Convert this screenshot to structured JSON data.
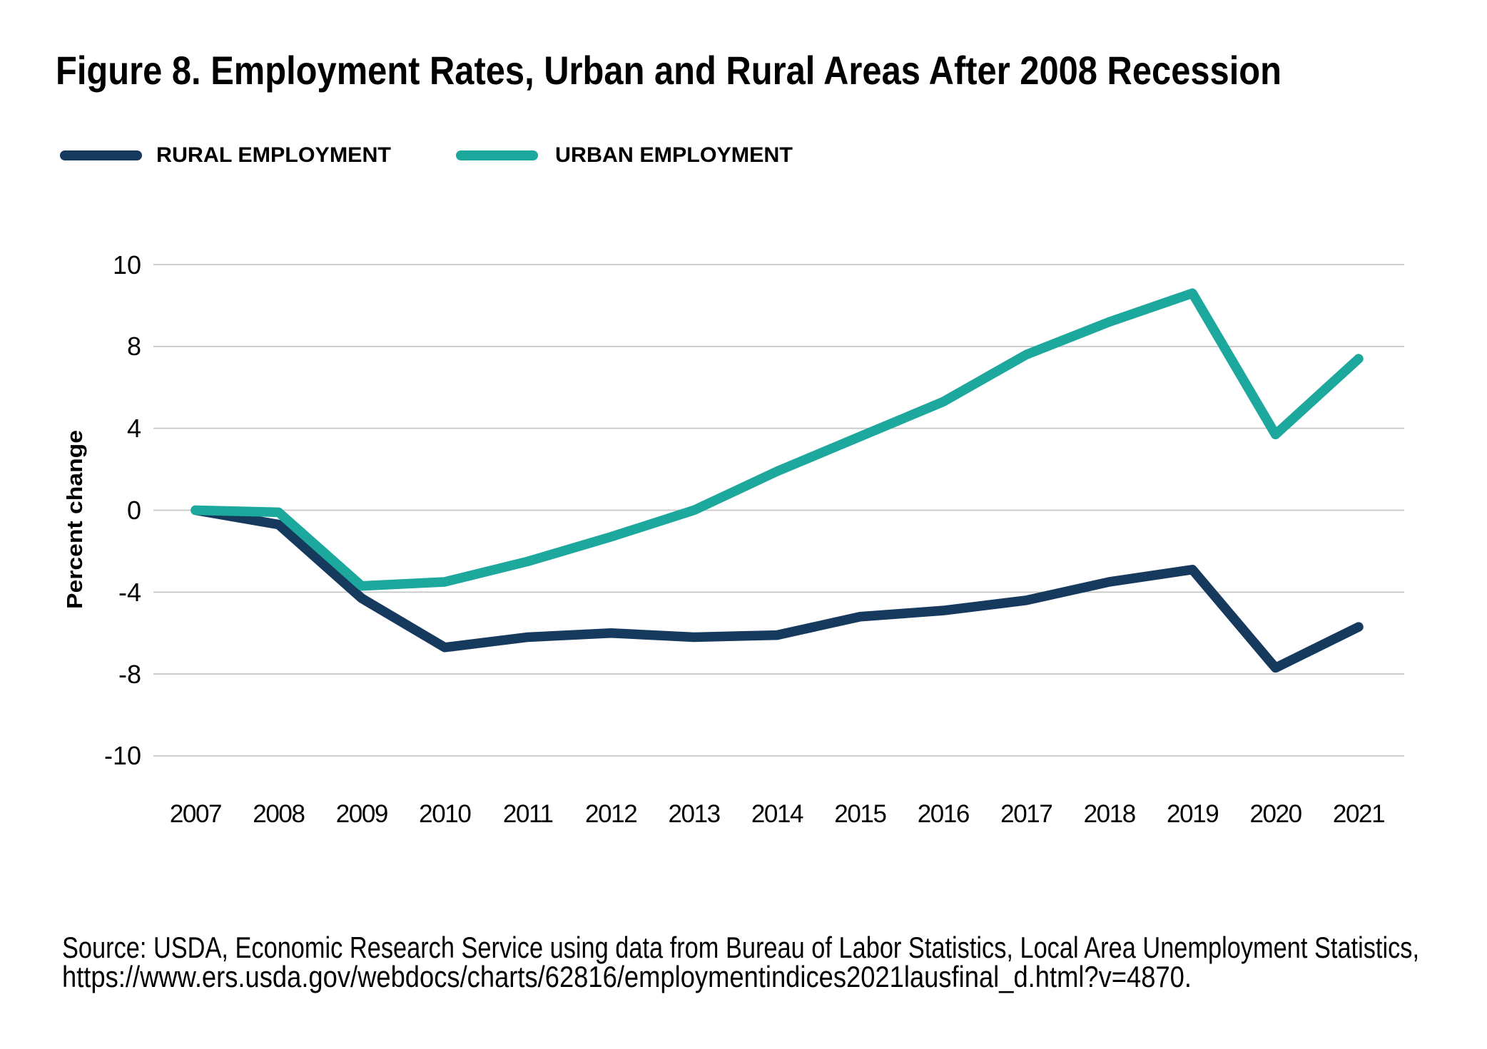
{
  "title": "Figure 8. Employment Rates, Urban and Rural Areas After 2008 Recession",
  "legend": {
    "items": [
      {
        "label": "RURAL EMPLOYMENT",
        "color": "#16395E"
      },
      {
        "label": "URBAN EMPLOYMENT",
        "color": "#1CA89D"
      }
    ]
  },
  "source_note": {
    "line1": "Source: USDA, Economic Research Service using data from Bureau of Labor Statistics, Local Area Unemployment Statistics,",
    "line2": "https://www.ers.usda.gov/webdocs/charts/62816/employmentindices2021lausfinal_d.html?v=4870."
  },
  "chart_data": {
    "type": "line",
    "title": "Figure 8. Employment Rates, Urban and Rural Areas After 2008 Recession",
    "xlabel": "",
    "ylabel": "Percent change",
    "x": [
      2007,
      2008,
      2009,
      2010,
      2011,
      2012,
      2013,
      2014,
      2015,
      2016,
      2017,
      2018,
      2019,
      2020,
      2021
    ],
    "series": [
      {
        "name": "RURAL EMPLOYMENT",
        "color": "#16395E",
        "values": [
          0.0,
          -0.7,
          -4.3,
          -6.7,
          -6.2,
          -6.0,
          -6.2,
          -6.1,
          -5.2,
          -4.9,
          -4.4,
          -3.5,
          -2.9,
          -7.7,
          -5.7
        ]
      },
      {
        "name": "URBAN EMPLOYMENT",
        "color": "#1CA89D",
        "values": [
          0.0,
          -0.1,
          -3.7,
          -3.5,
          -2.5,
          -1.3,
          0.0,
          1.9,
          3.6,
          5.3,
          7.6,
          8.6,
          9.3,
          3.7,
          7.4
        ]
      }
    ],
    "y_axis_tick_values": [
      10,
      8,
      4,
      0,
      -4,
      -8,
      -10
    ],
    "y_axis_note": "tick labels are evenly spaced on the axis although their values are not evenly spaced",
    "grid": "horizontal gridlines only",
    "gridline_color": "#c6c6c6",
    "legend_position": "top-left above plot",
    "line_width": 13.5
  }
}
